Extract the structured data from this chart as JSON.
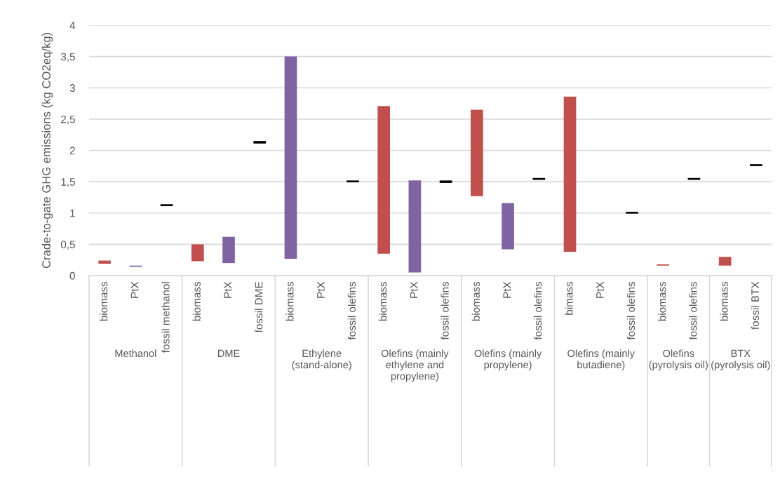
{
  "chart_data": {
    "type": "bar",
    "ylabel": "Crade-to-gate GHG emissions (kg CO2eq/kg)",
    "categories": [
      "biomass",
      "PtX",
      "fossil methanol",
      "biomass",
      "PtX",
      "fossil DME",
      "biomass",
      "PtX",
      "fossil olefins",
      "biomass",
      "PtX",
      "fossil olefins",
      "biomass",
      "PtX",
      "fossil olefins",
      "bimass",
      "PtX",
      "fossil olefins",
      "biomass",
      "fossil olefins",
      "biomass",
      "fossil BTX"
    ],
    "base": [
      0.19,
      0.14,
      1.11,
      0.23,
      0.2,
      2.11,
      0.27,
      null,
      1.49,
      0.35,
      0.05,
      1.48,
      1.27,
      0.42,
      1.53,
      0.38,
      null,
      0.99,
      0.16,
      1.53,
      0.16,
      1.75
    ],
    "values": [
      0.05,
      0.02,
      0.03,
      0.27,
      0.42,
      0.04,
      3.23,
      null,
      0.03,
      2.36,
      1.47,
      0.04,
      1.38,
      0.74,
      0.03,
      2.48,
      null,
      0.03,
      0.02,
      0.03,
      0.14,
      0.03
    ],
    "colors": [
      "#c0504d",
      "#8064a2",
      "#000000",
      "#c0504d",
      "#8064a2",
      "#000000",
      "#8064a2",
      "#8064a2",
      "#000000",
      "#c0504d",
      "#8064a2",
      "#000000",
      "#c0504d",
      "#8064a2",
      "#000000",
      "#c0504d",
      "#8064a2",
      "#000000",
      "#c0504d",
      "#000000",
      "#c0504d",
      "#000000"
    ],
    "annotations": [
      "Methanol",
      "DME",
      "Ethylene (stand-alone)",
      "Olefins (mainly ethylene and propylene)",
      "Olefins (mainly propylene)",
      "Olefins (mainly butadiene)",
      "Olefins (pyrolysis oil)",
      "BTX (pyrolysis oil)"
    ],
    "ylim": [
      0,
      4
    ],
    "yticks": [
      0,
      {
        "value": 0.5,
        "label": "0,5"
      },
      1,
      {
        "value": 1.5,
        "label": "1,5"
      },
      2,
      {
        "value": 2.5,
        "label": "2,5"
      },
      3,
      {
        "value": 3.5,
        "label": "3,5"
      },
      4
    ],
    "grid": "y"
  }
}
